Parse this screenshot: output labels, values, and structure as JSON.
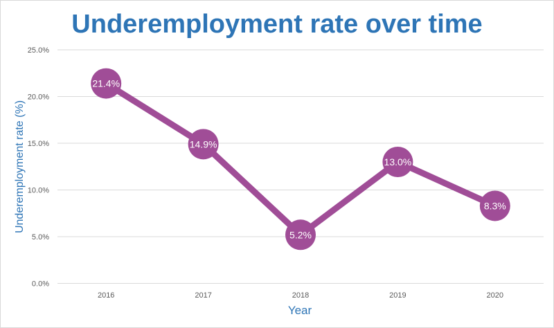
{
  "chart_data": {
    "type": "line",
    "title": "Underemployment rate over time",
    "xlabel": "Year",
    "ylabel": "Underemployment rate (%)",
    "categories": [
      "2016",
      "2017",
      "2018",
      "2019",
      "2020"
    ],
    "values": [
      21.4,
      14.9,
      5.2,
      13.0,
      8.3
    ],
    "data_labels": [
      "21.4%",
      "14.9%",
      "5.2%",
      "13.0%",
      "8.3%"
    ],
    "ylim": [
      0,
      25
    ],
    "yticks": [
      0,
      5,
      10,
      15,
      20,
      25
    ],
    "ytick_labels": [
      "0.0%",
      "5.0%",
      "10.0%",
      "15.0%",
      "20.0%",
      "25.0%"
    ],
    "grid": true,
    "legend": "none",
    "colors": {
      "title": "#2E75B6",
      "series": "#A04D97",
      "axis_label": "#2E75B6",
      "grid": "#D9D9D9",
      "tick": "#595959"
    }
  }
}
